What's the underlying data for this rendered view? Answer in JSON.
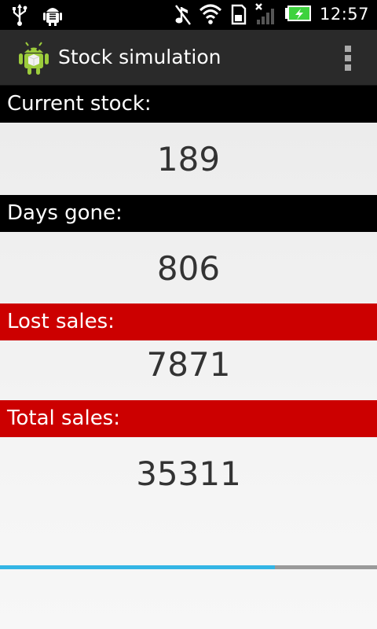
{
  "status_bar": {
    "time": "12:57",
    "left_icons": [
      "usb-icon",
      "android-debug-icon"
    ],
    "right_icons": [
      "music-muted-icon",
      "wifi-icon",
      "sd-card-icon",
      "signal-icon",
      "battery-charging-icon"
    ]
  },
  "action_bar": {
    "title": "Stock simulation",
    "app_icon": "android-app-icon",
    "overflow_icon": "overflow-menu-icon"
  },
  "stats": {
    "current_stock": {
      "label": "Current stock:",
      "value": "189"
    },
    "days_gone": {
      "label": "Days gone:",
      "value": "806"
    },
    "lost_sales": {
      "label": "Lost sales:",
      "value": "7871"
    },
    "total_sales": {
      "label": "Total sales:",
      "value": "35311"
    }
  },
  "progress": {
    "fraction": 0.73
  },
  "colors": {
    "label_black": "#000000",
    "label_red": "#cc0000",
    "progress_fill": "#33b5e5",
    "progress_track": "#9a9a9a",
    "battery_green": "#3ed23e"
  }
}
